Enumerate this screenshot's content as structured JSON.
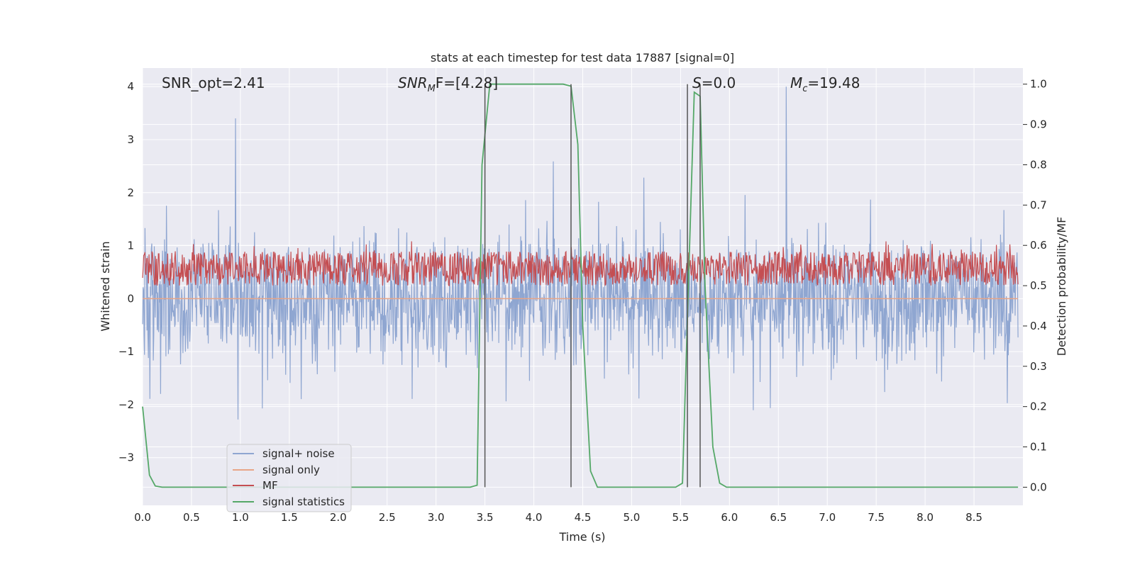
{
  "chart_data": {
    "type": "line",
    "title": "stats at each timestep for test data 17887 [signal=0]",
    "xlabel": "Time (s)",
    "ylabel_left": "Whitened strain",
    "ylabel_right": "Detection probability/MF",
    "xlim": [
      0.0,
      9.0
    ],
    "ylim_left": [
      -3.9,
      4.35
    ],
    "ylim_right": [
      -0.045,
      1.04
    ],
    "x_ticks": [
      "0.0",
      "0.5",
      "1.0",
      "1.5",
      "2.0",
      "2.5",
      "3.0",
      "3.5",
      "4.0",
      "4.5",
      "5.0",
      "5.5",
      "6.0",
      "6.5",
      "7.0",
      "7.5",
      "8.0",
      "8.5"
    ],
    "y_ticks_left": [
      "4",
      "3",
      "2",
      "1",
      "0",
      "−1",
      "−2",
      "−3"
    ],
    "y_ticks_right": [
      "1.0",
      "0.9",
      "0.8",
      "0.7",
      "0.6",
      "0.5",
      "0.4",
      "0.3",
      "0.2",
      "0.1",
      "0.0"
    ],
    "grid": true,
    "legend_position": "lower-left",
    "annotations": {
      "snr_opt": "SNR_opt=2.41",
      "snr_mf_base": "SNR",
      "snr_mf_sub": "M",
      "snr_mf_rest": "F=[4.28]",
      "s_label": "S",
      "s_rest": "=0.0",
      "mc_base": "M",
      "mc_sub": "c",
      "mc_rest": "=19.48"
    },
    "series": [
      {
        "name": "signal+ noise",
        "color": "#8fa6d1",
        "axis": "left",
        "description": "noisy whitened strain, approx amplitude ±1.5 with spikes to ±3.4"
      },
      {
        "name": "signal only",
        "color": "#e8a587",
        "axis": "left",
        "values_constant": 0.0
      },
      {
        "name": "MF",
        "color": "#c44e52",
        "axis": "right",
        "description": "matched filter output fluctuating between 0.5 and 0.6"
      },
      {
        "name": "signal statistics",
        "color": "#55a868",
        "axis": "right",
        "x": [
          0.0,
          0.07,
          0.13,
          0.2,
          3.35,
          3.42,
          3.47,
          3.55,
          3.6,
          4.3,
          4.38,
          4.45,
          4.5,
          4.58,
          4.65,
          5.45,
          5.52,
          5.58,
          5.64,
          5.7,
          5.75,
          5.83,
          5.9,
          5.97,
          6.05,
          8.95
        ],
        "values": [
          0.2,
          0.03,
          0.003,
          0.0,
          0.0,
          0.005,
          0.8,
          1.0,
          1.0,
          1.0,
          0.995,
          0.85,
          0.4,
          0.04,
          0.0,
          0.0,
          0.01,
          0.5,
          0.98,
          0.97,
          0.5,
          0.1,
          0.01,
          0.0,
          0.0,
          0.0
        ]
      }
    ],
    "vertical_markers_x": [
      3.5,
      4.38,
      5.57,
      5.7
    ],
    "notable_spikes": {
      "left": [
        0.95,
        6.58
      ],
      "mf": [
        2.75,
        7.6
      ]
    }
  }
}
